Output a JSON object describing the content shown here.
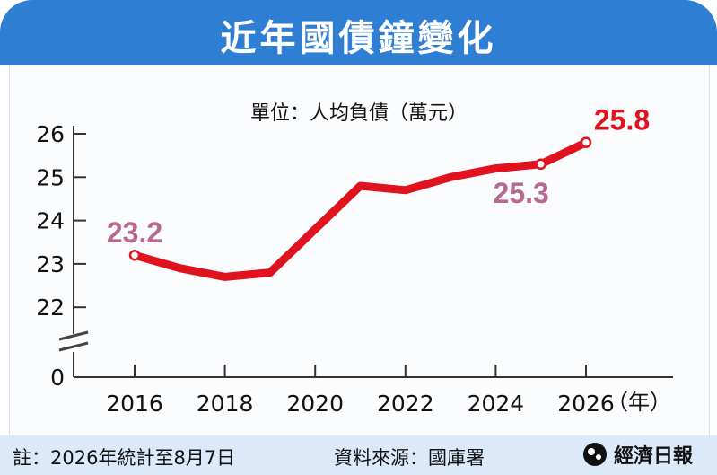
{
  "title": "近年國債鐘變化",
  "unit_label": "單位：人均負債（萬元）",
  "footer": {
    "note": "註：2026年統計至8月7日",
    "source": "資料來源：國庫署",
    "logo_text": "經濟日報",
    "logo_icon": "udn-logo-icon"
  },
  "colors": {
    "header": "#2e7fd4",
    "line": "#e0121d",
    "label_pink": "#b8688f",
    "label_red": "#e0121d",
    "footer": "#dbe9f8"
  },
  "chart_data": {
    "type": "line",
    "xlabel": "（年）",
    "ylabel": "",
    "x_ticks": [
      "2016",
      "2018",
      "2020",
      "2022",
      "2024",
      "2026"
    ],
    "y_ticks": [
      "26",
      "25",
      "24",
      "23",
      "22",
      "0"
    ],
    "ylim": [
      22,
      26
    ],
    "axis_break": true,
    "x": [
      2016,
      2017,
      2018,
      2019,
      2020,
      2021,
      2022,
      2023,
      2024,
      2025,
      2026
    ],
    "values": [
      23.2,
      22.9,
      22.7,
      22.8,
      23.8,
      24.8,
      24.7,
      25.0,
      25.2,
      25.3,
      25.8
    ],
    "annotations": [
      {
        "x": 2016,
        "y": 23.2,
        "text": "23.2"
      },
      {
        "x": 2025,
        "y": 25.3,
        "text": "25.3"
      },
      {
        "x": 2026,
        "y": 25.8,
        "text": "25.8"
      }
    ],
    "grid": false
  }
}
